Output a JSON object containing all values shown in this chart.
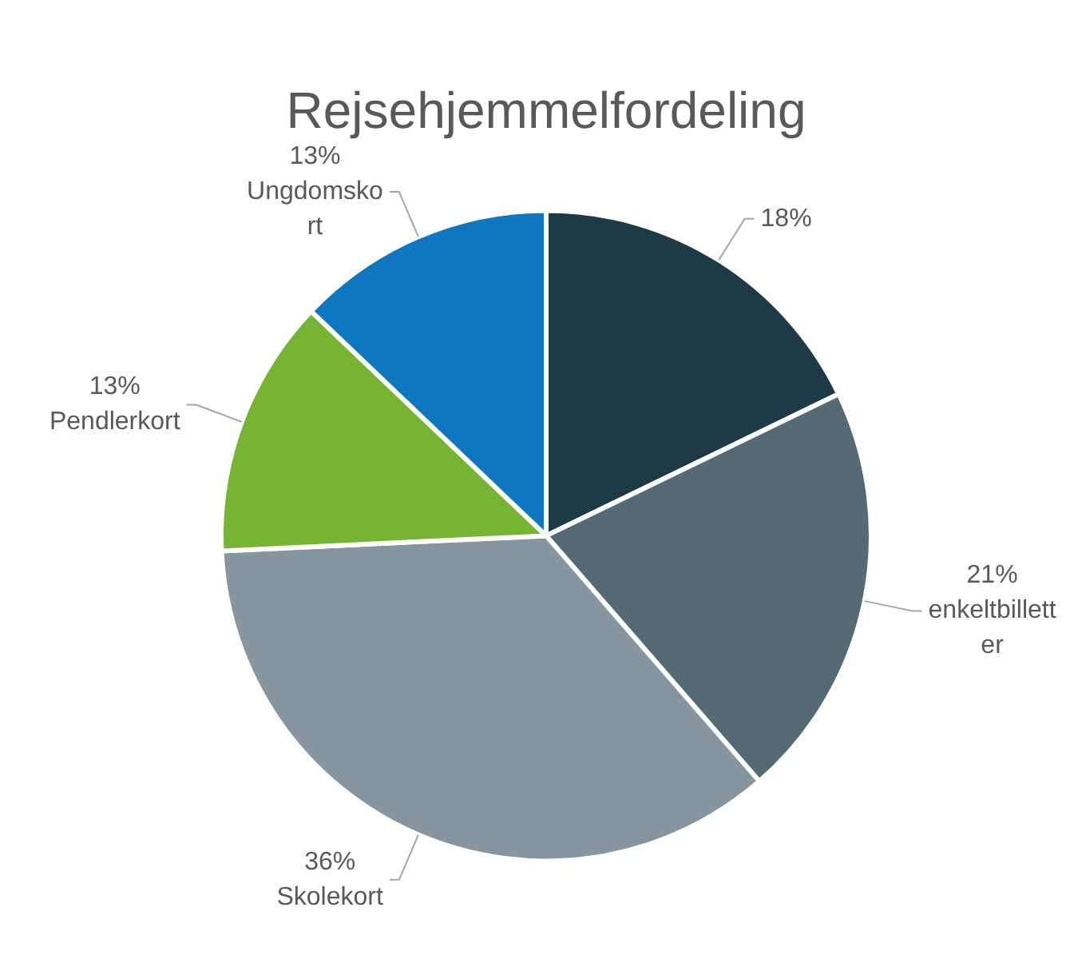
{
  "chart_data": {
    "type": "pie",
    "title": "Rejsehjemmelfordeling",
    "categories": [
      null,
      "enkeltbilletter",
      "Skolekort",
      "Pendlerkort",
      "Ungdomskort"
    ],
    "values": [
      18,
      21,
      36,
      13,
      13
    ],
    "value_labels": [
      "18%",
      "21%",
      "36%",
      "13%",
      "13%"
    ],
    "colors": [
      "#1f3a47",
      "#546b76",
      "#8795a0",
      "#76b434",
      "#0f77bf"
    ],
    "legend": false
  }
}
